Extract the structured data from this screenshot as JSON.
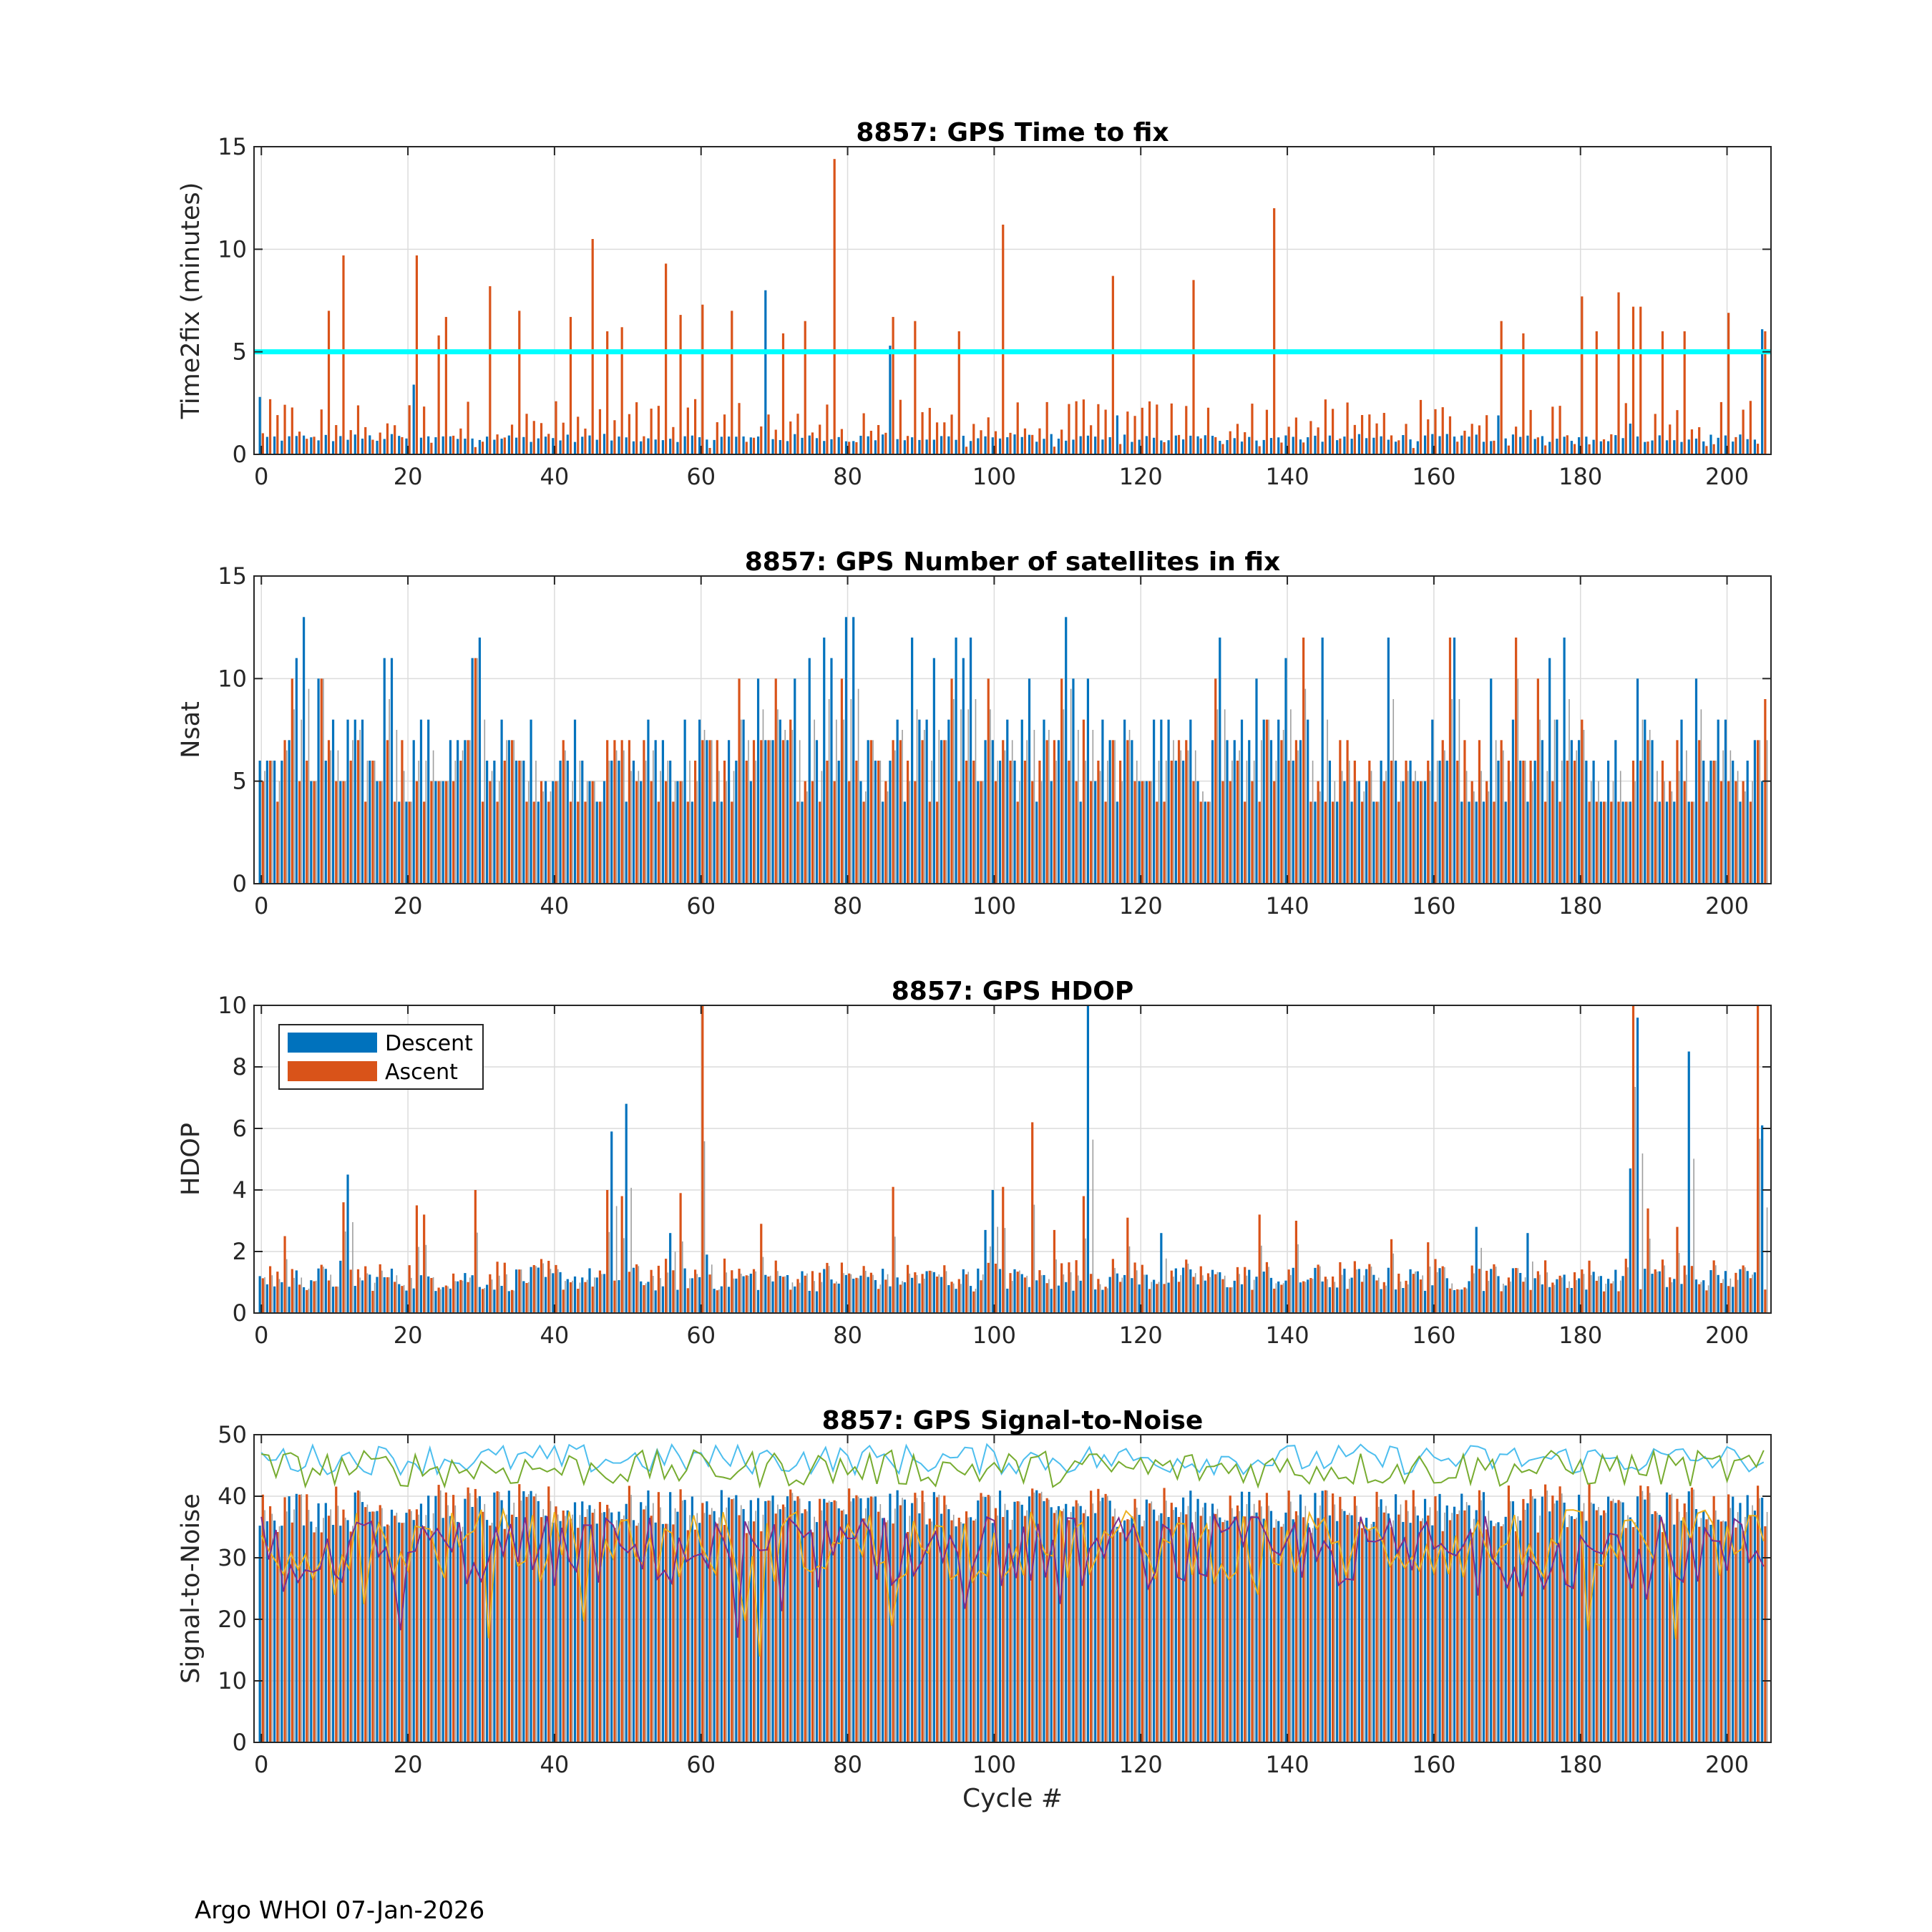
{
  "footer": "Argo WHOI 07-Jan-2026",
  "colors": {
    "descent": "#0072BD",
    "ascent": "#D95319",
    "threshold": "#00FFFF",
    "snr_lines": [
      "#4DBEEE",
      "#77AC30",
      "#EDB120",
      "#7E2F8E"
    ]
  },
  "legend": {
    "descent": "Descent",
    "ascent": "Ascent"
  },
  "chart_data": [
    {
      "id": "ttf",
      "type": "bar",
      "title": "8857: GPS Time to fix",
      "xlabel": "",
      "ylabel": "Time2fix (minutes)",
      "xlim": [
        -1,
        206
      ],
      "ylim": [
        0,
        15
      ],
      "xticks": [
        0,
        20,
        40,
        60,
        80,
        100,
        120,
        140,
        160,
        180,
        200
      ],
      "yticks": [
        0,
        5,
        10,
        15
      ],
      "grid": true,
      "threshold": 5,
      "descent_base": 0.8,
      "ascent_base": 0.5,
      "descent_spikes": {
        "0": 2.8,
        "21": 3.4,
        "69": 8.0,
        "86": 5.3,
        "117": 1.9,
        "169": 1.9,
        "187": 1.5,
        "205": 6.1
      },
      "ascent_spikes": {
        "9": 7.0,
        "11": 9.7,
        "21": 9.7,
        "24": 5.8,
        "25": 6.7,
        "31": 8.2,
        "35": 7.0,
        "42": 6.7,
        "45": 10.5,
        "47": 6.0,
        "49": 6.2,
        "55": 9.3,
        "57": 6.8,
        "60": 7.3,
        "64": 7.0,
        "71": 5.9,
        "74": 6.5,
        "78": 14.4,
        "86": 6.7,
        "89": 6.5,
        "95": 6.0,
        "101": 11.2,
        "116": 8.7,
        "127": 8.5,
        "138": 12.0,
        "169": 6.5,
        "172": 5.9,
        "180": 7.7,
        "182": 6.0,
        "185": 7.9,
        "187": 7.2,
        "188": 7.2,
        "191": 6.0,
        "194": 6.0,
        "200": 6.9,
        "205": 6.0
      }
    },
    {
      "id": "nsat",
      "type": "bar",
      "title": "8857: GPS Number of satellites in fix",
      "xlabel": "",
      "ylabel": "Nsat",
      "xlim": [
        -1,
        206
      ],
      "ylim": [
        0,
        15
      ],
      "xticks": [
        0,
        20,
        40,
        60,
        80,
        100,
        120,
        140,
        160,
        180,
        200
      ],
      "yticks": [
        0,
        5,
        10,
        15
      ],
      "grid": true,
      "descent_spikes": {
        "5": 11,
        "6": 13,
        "8": 10,
        "17": 11,
        "18": 11,
        "29": 11,
        "30": 12,
        "68": 10,
        "73": 10,
        "75": 11,
        "77": 12,
        "78": 11,
        "80": 13,
        "81": 13,
        "89": 12,
        "92": 11,
        "95": 12,
        "96": 11,
        "97": 12,
        "105": 10,
        "110": 13,
        "111": 10,
        "113": 10,
        "131": 12,
        "136": 10,
        "140": 11,
        "145": 12,
        "154": 12,
        "163": 12,
        "168": 10,
        "176": 11,
        "178": 12,
        "188": 10,
        "196": 10
      },
      "ascent_spikes": {
        "4": 10,
        "8": 10,
        "29": 11,
        "65": 10,
        "70": 10,
        "72": 8,
        "79": 10,
        "94": 10,
        "99": 10,
        "109": 10,
        "112": 8,
        "130": 10,
        "137": 8,
        "142": 12,
        "162": 12,
        "171": 12,
        "174": 10,
        "180": 8,
        "189": 7,
        "196": 7,
        "205": 9
      }
    },
    {
      "id": "hdop",
      "type": "bar",
      "title": "8857: GPS HDOP",
      "xlabel": "",
      "ylabel": "HDOP",
      "xlim": [
        -1,
        206
      ],
      "ylim": [
        0,
        10
      ],
      "xticks": [
        0,
        20,
        40,
        60,
        80,
        100,
        120,
        140,
        160,
        180,
        200
      ],
      "yticks": [
        0,
        2,
        4,
        6,
        8,
        10
      ],
      "grid": true,
      "legend_position": "top-left",
      "descent_spikes": {
        "0": 1.2,
        "11": 1.7,
        "12": 4.5,
        "48": 5.9,
        "50": 6.8,
        "56": 2.6,
        "61": 1.9,
        "99": 2.7,
        "100": 4.0,
        "113": 10.0,
        "123": 2.6,
        "166": 2.8,
        "173": 2.6,
        "187": 4.7,
        "188": 9.6,
        "195": 8.5,
        "205": 6.1
      },
      "ascent_spikes": {
        "3": 2.5,
        "11": 3.6,
        "21": 3.5,
        "22": 3.2,
        "29": 4.0,
        "47": 4.0,
        "49": 3.8,
        "57": 3.9,
        "60": 10.0,
        "68": 2.9,
        "86": 4.1,
        "101": 4.1,
        "105": 6.2,
        "108": 2.7,
        "112": 3.8,
        "118": 3.1,
        "136": 3.2,
        "141": 3.0,
        "154": 2.4,
        "159": 2.3,
        "187": 10.0,
        "189": 3.4,
        "193": 2.8,
        "204": 10.0
      }
    },
    {
      "id": "snr",
      "type": "bar",
      "title": "8857: GPS Signal-to-Noise",
      "xlabel": "Cycle #",
      "ylabel": "Signal-to-Noise",
      "xlim": [
        -1,
        206
      ],
      "ylim": [
        0,
        50
      ],
      "xticks": [
        0,
        20,
        40,
        60,
        80,
        100,
        120,
        140,
        160,
        180,
        200
      ],
      "yticks": [
        0,
        10,
        20,
        30,
        40,
        50
      ],
      "grid": true,
      "bar_level": 38,
      "line_series": [
        {
          "name": "max_descent",
          "mean": 46,
          "amp": 2.5
        },
        {
          "name": "max_ascent",
          "mean": 44.5,
          "amp": 3
        },
        {
          "name": "mean_ascent",
          "mean": 32,
          "amp": 6
        },
        {
          "name": "mean_descent",
          "mean": 31,
          "amp": 6
        }
      ]
    }
  ]
}
